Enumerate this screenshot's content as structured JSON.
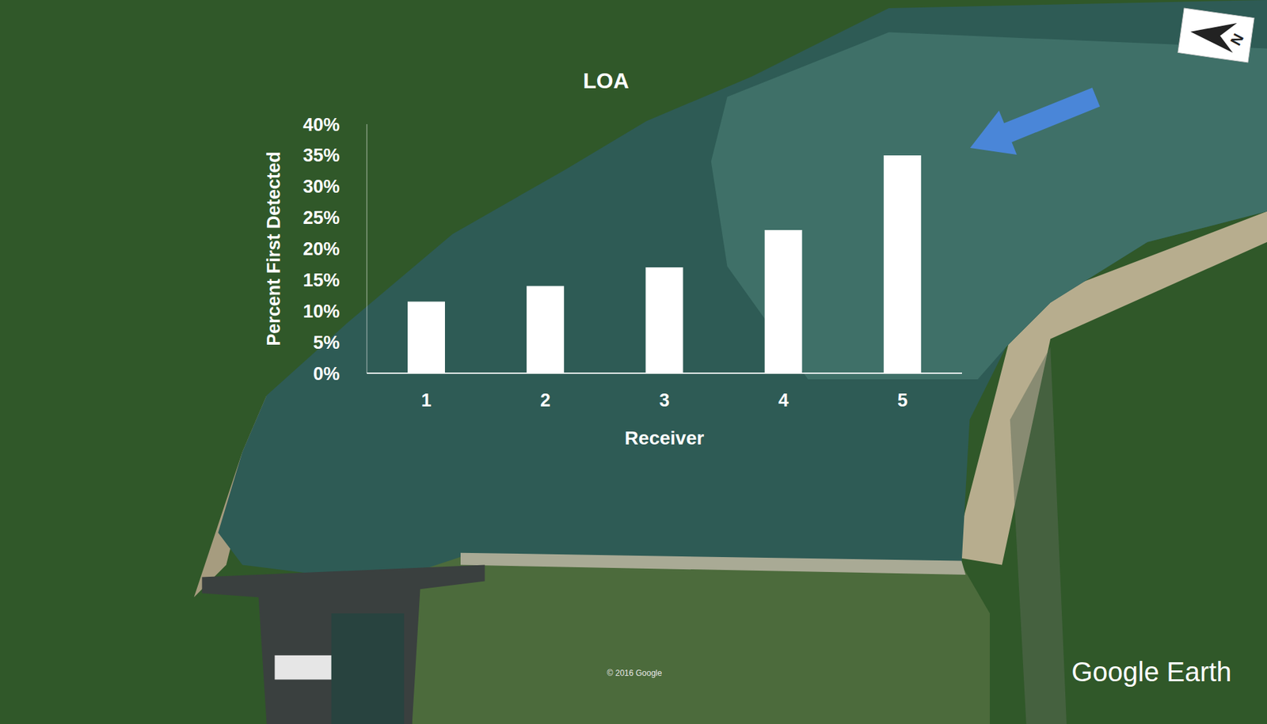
{
  "chart_data": {
    "type": "bar",
    "title": "LOA",
    "categories": [
      "1",
      "2",
      "3",
      "4",
      "5"
    ],
    "values": [
      11.5,
      14,
      17,
      23,
      35
    ],
    "color": "#ffffff",
    "x_label": "Receiver",
    "y_label": "Percent First Detected",
    "ylim": [
      0,
      40
    ],
    "yticks": [
      {
        "value": 0,
        "label": "0%"
      },
      {
        "value": 5,
        "label": "5%"
      },
      {
        "value": 10,
        "label": "10%"
      },
      {
        "value": 15,
        "label": "15%"
      },
      {
        "value": 20,
        "label": "20%"
      },
      {
        "value": 25,
        "label": "25%"
      },
      {
        "value": 30,
        "label": "30%"
      },
      {
        "value": 35,
        "label": "35%"
      },
      {
        "value": 40,
        "label": "40%"
      }
    ],
    "grid": false,
    "annotations": [
      "N",
      "© 2016 Google",
      "Google Earth"
    ]
  }
}
